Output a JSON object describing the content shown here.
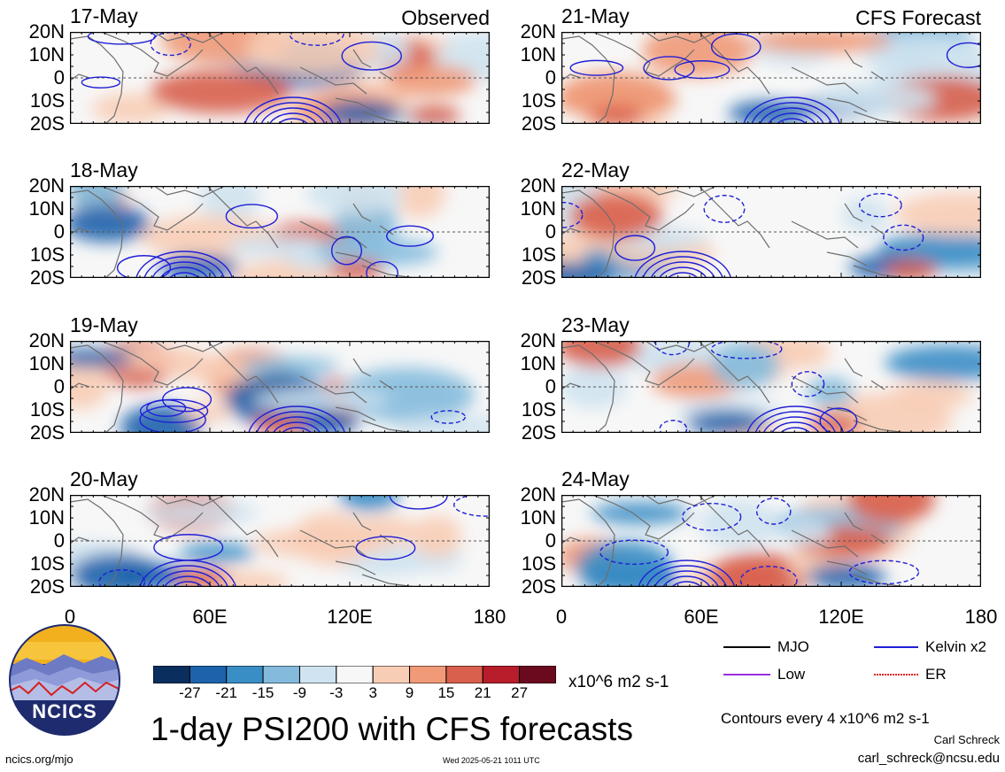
{
  "panels": [
    {
      "date": "17-May",
      "tag": "Observed",
      "col": 0,
      "row": 0,
      "seed": 1
    },
    {
      "date": "18-May",
      "tag": "",
      "col": 0,
      "row": 1,
      "seed": 2
    },
    {
      "date": "19-May",
      "tag": "",
      "col": 0,
      "row": 2,
      "seed": 3
    },
    {
      "date": "20-May",
      "tag": "",
      "col": 0,
      "row": 3,
      "seed": 4
    },
    {
      "date": "21-May",
      "tag": "CFS Forecast",
      "col": 1,
      "row": 0,
      "seed": 5
    },
    {
      "date": "22-May",
      "tag": "",
      "col": 1,
      "row": 1,
      "seed": 6
    },
    {
      "date": "23-May",
      "tag": "",
      "col": 1,
      "row": 2,
      "seed": 7
    },
    {
      "date": "24-May",
      "tag": "",
      "col": 1,
      "row": 3,
      "seed": 8
    }
  ],
  "lat_labels": [
    "20N",
    "10N",
    "0",
    "10S",
    "20S"
  ],
  "lon_labels": [
    "0",
    "60E",
    "120E",
    "180"
  ],
  "legend": {
    "mjo": "MJO",
    "kelvin": "Kelvin x2",
    "low": "Low",
    "er": "ER",
    "mjo_color": "#000000",
    "kelvin_color": "#1f1fd6",
    "low_color": "#9b30e0",
    "er_color": "#e02020"
  },
  "colorbar": {
    "labels": [
      "-27",
      "-21",
      "-15",
      "-9",
      "-3",
      "3",
      "9",
      "15",
      "21",
      "27"
    ],
    "colors": [
      "#0a2f5e",
      "#1c63ac",
      "#3a8ec6",
      "#84bbdd",
      "#cfe3f0",
      "#f7f7f7",
      "#f8cdb6",
      "#f09a78",
      "#d8604d",
      "#b71d2b",
      "#6b0a1f"
    ],
    "units": "x10^6 m2 s-1"
  },
  "title": "1-day PSI200 with CFS forecasts",
  "contour_note": "Contours every 4 x10^6 m2 s-1",
  "author": "Carl Schreck",
  "email": "carl_schreck@ncsu.edu",
  "url": "ncics.org/mjo",
  "timestamp": "Wed 2025-05-21 1011 UTC",
  "logo_text": "NCICS"
}
